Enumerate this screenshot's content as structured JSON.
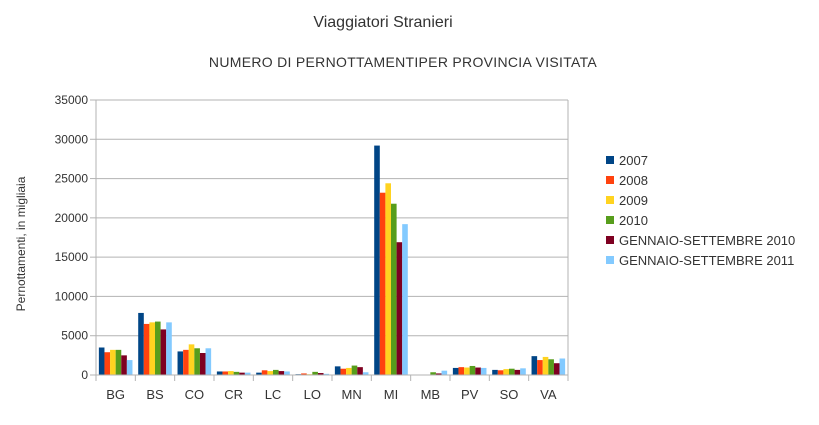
{
  "chart_data": {
    "type": "bar",
    "title": "Viaggiatori Stranieri",
    "subtitle": "NUMERO DI PERNOTTAMENTIPER PROVINCIA VISITATA",
    "xlabel": "",
    "ylabel": "Pernottamenti, in migliaia",
    "ylim": [
      0,
      35000
    ],
    "yticks": [
      0,
      5000,
      10000,
      15000,
      20000,
      25000,
      30000,
      35000
    ],
    "grid": true,
    "legend_position": "right",
    "categories": [
      "BG",
      "BS",
      "CO",
      "CR",
      "LC",
      "LO",
      "MN",
      "MI",
      "MB",
      "PV",
      "SO",
      "VA"
    ],
    "series": [
      {
        "name": "2007",
        "color": "#004586",
        "values": [
          3500,
          7900,
          3000,
          450,
          300,
          100,
          1100,
          29200,
          0,
          900,
          650,
          2400
        ]
      },
      {
        "name": "2008",
        "color": "#ff420e",
        "values": [
          2900,
          6500,
          3200,
          450,
          600,
          200,
          800,
          23200,
          0,
          1000,
          600,
          1900
        ]
      },
      {
        "name": "2009",
        "color": "#ffd320",
        "values": [
          3200,
          6700,
          3900,
          500,
          500,
          100,
          900,
          24400,
          0,
          950,
          750,
          2300
        ]
      },
      {
        "name": "2010",
        "color": "#579d1c",
        "values": [
          3200,
          6800,
          3400,
          400,
          650,
          400,
          1200,
          21800,
          350,
          1150,
          800,
          2000
        ]
      },
      {
        "name": "GENNAIO-SETTEMBRE 2010",
        "color": "#7e0021",
        "values": [
          2500,
          5800,
          2800,
          300,
          500,
          250,
          1000,
          16900,
          200,
          950,
          650,
          1500
        ]
      },
      {
        "name": "GENNAIO-SETTEMBRE 2011",
        "color": "#83caff",
        "values": [
          1900,
          6700,
          3400,
          300,
          450,
          150,
          350,
          19200,
          550,
          900,
          850,
          2100
        ]
      }
    ]
  }
}
